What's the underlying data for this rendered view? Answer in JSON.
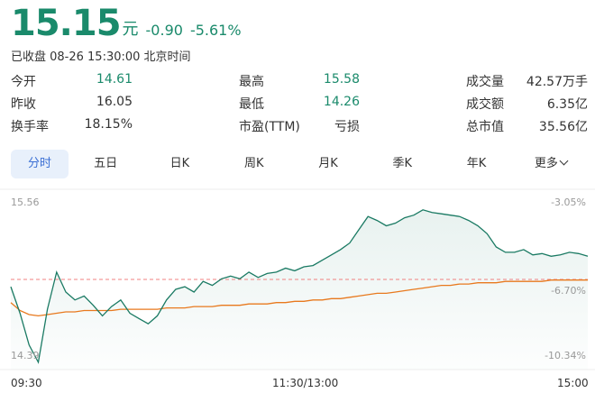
{
  "quote": {
    "price": "15.15",
    "unit": "元",
    "change": "-0.90",
    "change_pct": "-5.61%",
    "status": "已收盘 08-26 15:30:00 北京时间"
  },
  "stats": [
    [
      {
        "label": "今开",
        "value": "14.61",
        "green": true
      },
      {
        "label": "最高",
        "value": "15.58",
        "green": true
      },
      {
        "label": "成交量",
        "value": "42.57万手",
        "green": false
      }
    ],
    [
      {
        "label": "昨收",
        "value": "16.05",
        "green": false
      },
      {
        "label": "最低",
        "value": "14.26",
        "green": true
      },
      {
        "label": "成交额",
        "value": "6.35亿",
        "green": false
      }
    ],
    [
      {
        "label": "换手率",
        "value": "18.15%",
        "green": false
      },
      {
        "label": "市盈(TTM)",
        "value": "亏损",
        "green": false
      },
      {
        "label": "总市值",
        "value": "35.56亿",
        "green": false
      }
    ]
  ],
  "tabs": [
    "分时",
    "五日",
    "日K",
    "周K",
    "月K",
    "季K",
    "年K",
    "更多"
  ],
  "active_tab": 0,
  "chart_data": {
    "type": "line",
    "y_left_labels": [
      "15.56",
      "14.39"
    ],
    "y_right_labels": [
      "-3.05%",
      "-6.70%",
      "-10.34%"
    ],
    "x_labels": [
      "09:30",
      "11:30/13:00",
      "15:00"
    ],
    "ylim": [
      14.39,
      15.56
    ],
    "prev_close": 16.05,
    "reference_price": 14.975,
    "colors": {
      "price": "#1a7a63",
      "avg": "#e8791e",
      "ref": "#f08080"
    },
    "series": [
      {
        "values": [
          14.92,
          14.72,
          14.48,
          14.35,
          14.75,
          15.03,
          14.88,
          14.82,
          14.85,
          14.78,
          14.7,
          14.77,
          14.82,
          14.72,
          14.68,
          14.64,
          14.7,
          14.82,
          14.9,
          14.92,
          14.88,
          14.96,
          14.93,
          14.98,
          15.0,
          14.98,
          15.03,
          14.99,
          15.02,
          15.03,
          15.06,
          15.04,
          15.07,
          15.08,
          15.12,
          15.16,
          15.2,
          15.25,
          15.35,
          15.45,
          15.42,
          15.38,
          15.4,
          15.44,
          15.46,
          15.5,
          15.48,
          15.47,
          15.46,
          15.45,
          15.42,
          15.38,
          15.32,
          15.22,
          15.18,
          15.18,
          15.2,
          15.16,
          15.17,
          15.15,
          15.16,
          15.18,
          15.17,
          15.15
        ]
      },
      {
        "values": [
          14.8,
          14.74,
          14.71,
          14.7,
          14.71,
          14.72,
          14.73,
          14.73,
          14.74,
          14.74,
          14.74,
          14.74,
          14.75,
          14.75,
          14.75,
          14.75,
          14.75,
          14.76,
          14.76,
          14.76,
          14.77,
          14.77,
          14.77,
          14.78,
          14.78,
          14.78,
          14.79,
          14.79,
          14.79,
          14.8,
          14.8,
          14.81,
          14.81,
          14.82,
          14.82,
          14.83,
          14.83,
          14.84,
          14.85,
          14.86,
          14.87,
          14.87,
          14.88,
          14.89,
          14.9,
          14.91,
          14.92,
          14.93,
          14.93,
          14.94,
          14.94,
          14.95,
          14.95,
          14.95,
          14.96,
          14.96,
          14.96,
          14.96,
          14.96,
          14.97,
          14.97,
          14.97,
          14.97,
          14.97
        ]
      }
    ]
  }
}
